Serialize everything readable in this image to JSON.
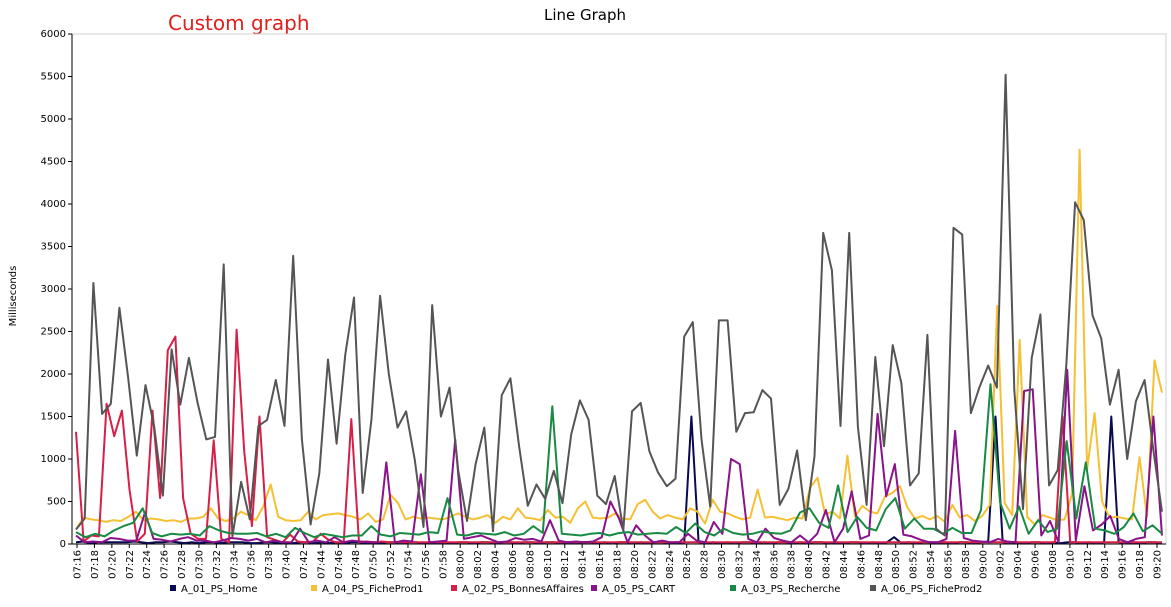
{
  "header": {
    "custom_label": "Custom graph"
  },
  "chart_data": {
    "type": "line",
    "title": "Line Graph",
    "xlabel": "",
    "ylabel": "Milliseconds",
    "ylim": [
      0,
      6000
    ],
    "yticks": [
      0,
      500,
      1000,
      1500,
      2000,
      2500,
      3000,
      3500,
      4000,
      4500,
      5000,
      5500,
      6000
    ],
    "grid": false,
    "legend_position": "bottom",
    "x_tick_labels": [
      "07:16",
      "07:18",
      "07:20",
      "07:22",
      "07:24",
      "07:26",
      "07:28",
      "07:30",
      "07:32",
      "07:34",
      "07:36",
      "07:38",
      "07:40",
      "07:42",
      "07:44",
      "07:46",
      "07:48",
      "07:50",
      "07:52",
      "07:54",
      "07:56",
      "07:58",
      "08:00",
      "08:02",
      "08:04",
      "08:06",
      "08:08",
      "08:10",
      "08:12",
      "08:14",
      "08:16",
      "08:18",
      "08:20",
      "08:22",
      "08:24",
      "08:26",
      "08:28",
      "08:30",
      "08:32",
      "08:34",
      "08:36",
      "08:38",
      "08:40",
      "08:42",
      "08:44",
      "08:46",
      "08:48",
      "08:50",
      "08:52",
      "08:54",
      "08:56",
      "08:58",
      "09:00",
      "09:02",
      "09:04",
      "09:06",
      "09:08",
      "09:10",
      "09:12",
      "09:14",
      "09:16",
      "09:18",
      "09:20"
    ],
    "series": [
      {
        "name": "A_01_PS_Home",
        "color": "#0a0a50",
        "values": [
          20,
          30,
          10,
          20,
          20,
          20,
          20,
          20,
          30,
          20,
          10,
          20,
          20,
          30,
          20,
          10,
          20,
          10,
          20,
          20,
          10,
          20,
          20,
          20,
          10,
          10,
          20,
          20,
          10,
          20,
          10,
          20,
          20,
          10,
          20,
          10,
          20,
          10,
          20,
          20,
          10,
          20,
          10,
          20,
          20,
          10,
          20,
          20,
          10,
          20,
          10,
          20,
          10,
          20,
          20,
          10,
          20,
          20,
          10,
          20,
          20,
          10,
          20,
          20,
          10,
          20,
          20,
          10,
          20,
          10,
          20,
          20,
          10,
          20,
          10,
          20,
          20,
          10,
          20,
          10,
          20,
          20,
          10,
          20,
          10,
          1500,
          20,
          10,
          20,
          10,
          20,
          10,
          20,
          20,
          10,
          20,
          10,
          20,
          20,
          10,
          20,
          10,
          20,
          20,
          10,
          20,
          10,
          20,
          20,
          10,
          20,
          10,
          20,
          80,
          10,
          20,
          10,
          20,
          20,
          10,
          20,
          10,
          20,
          20,
          10,
          20,
          30,
          1500,
          20,
          10,
          20,
          10,
          20,
          20,
          10,
          20,
          10,
          20,
          20,
          10,
          20,
          10,
          20,
          1500,
          20,
          10,
          20,
          10,
          20,
          20,
          10
        ]
      },
      {
        "name": "A_04_PS_FicheProd1",
        "color": "#f5c034",
        "values": [
          170,
          310,
          290,
          280,
          260,
          280,
          270,
          320,
          380,
          280,
          300,
          290,
          270,
          280,
          260,
          300,
          300,
          320,
          420,
          300,
          270,
          300,
          380,
          340,
          280,
          440,
          700,
          320,
          280,
          270,
          280,
          380,
          290,
          340,
          350,
          360,
          340,
          320,
          290,
          360,
          260,
          290,
          580,
          480,
          290,
          320,
          300,
          310,
          300,
          290,
          320,
          360,
          320,
          290,
          310,
          340,
          250,
          320,
          290,
          420,
          310,
          300,
          280,
          400,
          310,
          320,
          250,
          420,
          500,
          310,
          300,
          310,
          360,
          300,
          290,
          470,
          520,
          380,
          300,
          340,
          310,
          290,
          420,
          380,
          240,
          520,
          380,
          360,
          320,
          290,
          310,
          640,
          310,
          320,
          300,
          280,
          310,
          300,
          660,
          780,
          350,
          380,
          300,
          1040,
          320,
          450,
          380,
          360,
          560,
          600,
          680,
          430,
          300,
          330,
          290,
          330,
          260,
          460,
          310,
          340,
          270,
          330,
          460,
          2800,
          480,
          340,
          2400,
          320,
          230,
          340,
          310,
          280,
          290,
          590,
          4640,
          880,
          1540,
          500,
          310,
          320,
          300,
          290,
          1020,
          320,
          2160,
          1780
        ]
      },
      {
        "name": "A_02_PS_BonnesAffaires",
        "color": "#d62047",
        "values": [
          1320,
          30,
          100,
          90,
          1650,
          1270,
          1570,
          640,
          30,
          120,
          1570,
          540,
          2280,
          2440,
          540,
          120,
          60,
          60,
          1220,
          60,
          20,
          2520,
          1080,
          210,
          1500,
          80,
          50,
          20,
          110,
          30,
          20,
          30,
          120,
          50,
          20,
          20,
          1470,
          20,
          30,
          20,
          30,
          20,
          20,
          20,
          20,
          20,
          20,
          20,
          20,
          20,
          20,
          20,
          20,
          20,
          20,
          20,
          20,
          20,
          20,
          20,
          20,
          20,
          20,
          20,
          20,
          20,
          20,
          20,
          20,
          20,
          20,
          20,
          20,
          20,
          20,
          20,
          20,
          20,
          20,
          20,
          20,
          20,
          20,
          20,
          20,
          20,
          20,
          20,
          20,
          20,
          20,
          20,
          20,
          20,
          20,
          20,
          20,
          20,
          20,
          20,
          20,
          20,
          20,
          20,
          20,
          20,
          20,
          20,
          20,
          20,
          20,
          20,
          20,
          20,
          20,
          20,
          20,
          20,
          20,
          20,
          20,
          20,
          20,
          20,
          20,
          20,
          20,
          20,
          20,
          1500,
          20,
          20,
          20,
          20,
          20,
          20,
          20,
          20,
          20,
          20,
          20,
          20,
          20
        ]
      },
      {
        "name": "A_05_PS_CART",
        "color": "#8a128a",
        "values": [
          100,
          20,
          30,
          20,
          70,
          60,
          40,
          40,
          370,
          60,
          50,
          30,
          60,
          80,
          40,
          40,
          20,
          40,
          70,
          60,
          40,
          60,
          20,
          40,
          20,
          20,
          180,
          20,
          40,
          20,
          80,
          20,
          40,
          30,
          20,
          20,
          960,
          20,
          40,
          30,
          820,
          20,
          30,
          40,
          1230,
          60,
          80,
          100,
          60,
          20,
          30,
          70,
          50,
          60,
          30,
          280,
          40,
          20,
          30,
          20,
          30,
          80,
          500,
          300,
          20,
          220,
          100,
          20,
          40,
          20,
          20,
          120,
          40,
          20,
          260,
          120,
          1000,
          940,
          60,
          20,
          180,
          70,
          40,
          20,
          100,
          20,
          120,
          400,
          20,
          180,
          620,
          60,
          100,
          1530,
          560,
          940,
          110,
          90,
          50,
          20,
          20,
          60,
          1330,
          70,
          40,
          30,
          20,
          60,
          30,
          20,
          1800,
          1820,
          100,
          270,
          20,
          2050,
          40,
          680,
          160,
          230,
          330,
          60,
          20,
          60,
          80,
          1500,
          100
        ]
      },
      {
        "name": "A_03_PS_Recherche",
        "color": "#188a44",
        "values": [
          140,
          80,
          120,
          90,
          160,
          210,
          250,
          420,
          130,
          90,
          120,
          110,
          120,
          100,
          210,
          160,
          130,
          120,
          120,
          130,
          90,
          120,
          80,
          190,
          130,
          80,
          120,
          100,
          80,
          100,
          100,
          210,
          110,
          90,
          130,
          120,
          110,
          140,
          130,
          540,
          110,
          100,
          130,
          120,
          110,
          140,
          100,
          120,
          210,
          130,
          1620,
          120,
          110,
          100,
          120,
          130,
          100,
          130,
          140,
          110,
          120,
          130,
          120,
          200,
          130,
          240,
          140,
          100,
          180,
          130,
          110,
          120,
          150,
          130,
          120,
          160,
          370,
          420,
          250,
          190,
          690,
          140,
          320,
          190,
          160,
          410,
          540,
          180,
          300,
          180,
          180,
          120,
          190,
          130,
          130,
          400,
          1880,
          490,
          180,
          440,
          120,
          280,
          140,
          180,
          1210,
          300,
          960,
          180,
          160,
          120,
          200,
          360,
          150,
          220,
          120
        ]
      },
      {
        "name": "A_06_PS_FicheProd2",
        "color": "#555555",
        "values": [
          170,
          300,
          3070,
          1530,
          1650,
          2780,
          1960,
          1040,
          1870,
          1380,
          570,
          2290,
          1640,
          2190,
          1660,
          1230,
          1260,
          3290,
          90,
          730,
          290,
          1390,
          1460,
          1930,
          1390,
          3390,
          1230,
          230,
          830,
          2170,
          1180,
          2230,
          2900,
          600,
          1460,
          2920,
          2000,
          1370,
          1560,
          990,
          200,
          2810,
          1500,
          1840,
          860,
          270,
          940,
          1370,
          150,
          1750,
          1950,
          1150,
          450,
          700,
          530,
          860,
          480,
          1290,
          1690,
          1460,
          570,
          470,
          800,
          160,
          1560,
          1660,
          1090,
          840,
          680,
          770,
          2440,
          2610,
          1230,
          440,
          2630,
          2630,
          1320,
          1540,
          1550,
          1810,
          1710,
          460,
          650,
          1100,
          280,
          1030,
          3660,
          3220,
          1390,
          3660,
          1380,
          460,
          2200,
          1150,
          2340,
          1890,
          690,
          830,
          2460,
          180,
          100,
          3720,
          3640,
          1540,
          1850,
          2100,
          1840,
          5520,
          1810,
          410,
          2190,
          2700,
          690,
          870,
          2120,
          4020,
          3810,
          2690,
          2420,
          1640,
          2050,
          1000,
          1680,
          1930,
          1110,
          380
        ]
      }
    ]
  }
}
